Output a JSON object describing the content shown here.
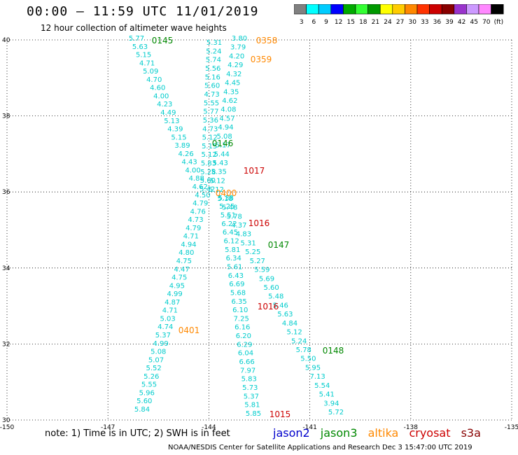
{
  "title": "00:00 – 11:59 UTC 11/01/2019",
  "subtitle": "12 hour collection of altimeter wave heights",
  "note": "note: 1) Time is in UTC; 2) SWH is in feet",
  "credit": "NOAA/NESDIS Center for Satellite Applications and Research   Dec  3 15:47:00 UTC 2019",
  "satellites": [
    {
      "name": "jason2",
      "color": "#0000cc"
    },
    {
      "name": "jason3",
      "color": "#008800"
    },
    {
      "name": "altika",
      "color": "#ff8800"
    },
    {
      "name": "cryosat",
      "color": "#cc0000"
    },
    {
      "name": "s3a",
      "color": "#880000"
    }
  ],
  "colorbar": {
    "colors": [
      "#808080",
      "#00ffff",
      "#00ccff",
      "#0000ff",
      "#00aa00",
      "#33ff33",
      "#009900",
      "#ffff00",
      "#ffcc00",
      "#ff8800",
      "#ff3300",
      "#cc0000",
      "#880000",
      "#9933cc",
      "#cc99ff",
      "#ff88ff",
      "#000000"
    ],
    "labels": [
      "3",
      "6",
      "9",
      "12",
      "15",
      "18",
      "21",
      "24",
      "27",
      "30",
      "33",
      "36",
      "39",
      "42",
      "45",
      "70",
      "(ft)"
    ]
  },
  "map": {
    "lon_range": [
      -150,
      -135
    ],
    "lat_range": [
      30,
      40
    ],
    "lon_ticks": [
      "-150",
      "-147",
      "-144",
      "-141",
      "-138",
      "-135"
    ],
    "lat_ticks": [
      "40",
      "38",
      "36",
      "34",
      "32",
      "30"
    ],
    "grid": "dotted"
  },
  "tracks": [
    {
      "values": [
        "5.77",
        "5.63",
        "5.15",
        "4.71",
        "5.09",
        "4.70",
        "4.60",
        "4.00",
        "4.23",
        "4.49",
        "5.13",
        "4.39",
        "5.15",
        "3.89",
        "4.26",
        "4.43",
        "4.00",
        "4.88",
        "4.62",
        "4.50",
        "4.79",
        "4.76",
        "4.73",
        "4.79",
        "4.71",
        "4.94",
        "4.80",
        "4.75",
        "4.47",
        "4.75",
        "4.95",
        "4.99",
        "4.87",
        "4.71",
        "5.03",
        "4.74",
        "5.37",
        "4.99",
        "5.08",
        "5.07",
        "5.52",
        "5.26",
        "5.55",
        "5.96",
        "5.60",
        "5.84"
      ]
    },
    {
      "values": [
        "5.31",
        "5.24",
        "5.74",
        "5.56",
        "5.16",
        "5.60",
        "4.73",
        "5.55",
        "5.77",
        "5.36",
        "4.73",
        "5.12",
        "5.15",
        "5.12",
        "5.83",
        "5.28",
        "5.60",
        "5.42",
        "5.38",
        "5.25",
        "5.51",
        "6.22",
        "6.45",
        "6.12",
        "5.81",
        "6.34",
        "5.61",
        "6.43",
        "6.69",
        "5.68",
        "6.35",
        "6.10",
        "7.25",
        "6.16",
        "6.20",
        "6.29",
        "6.04",
        "6.66",
        "7.97",
        "5.83",
        "5.73",
        "5.37",
        "5.81",
        "5.85"
      ]
    },
    {
      "values": [
        "3.80",
        "3.79",
        "4.20",
        "4.29",
        "4.32",
        "4.45",
        "4.35",
        "4.62",
        "4.08",
        "4.57",
        "4.94",
        "5.08",
        "5.17",
        "5.44",
        "5.43",
        "5.35",
        "5.12",
        "5.12",
        "5.18",
        "5.48",
        "5.78",
        "4.37",
        "4.83",
        "5.31",
        "5.25",
        "5.27",
        "5.59",
        "5.69",
        "5.60",
        "5.48",
        "5.46",
        "5.63",
        "4.84",
        "5.12",
        "5.24",
        "5.78",
        "5.50",
        "5.95",
        "7.13",
        "5.54",
        "5.41",
        "3.94",
        "5.72"
      ]
    }
  ],
  "passes": [
    {
      "time": "0145",
      "sat": "jason3"
    },
    {
      "time": "0358",
      "sat": "altika"
    },
    {
      "time": "0359",
      "sat": "altika"
    },
    {
      "time": "0146",
      "sat": "jason3"
    },
    {
      "time": "1017",
      "sat": "cryosat"
    },
    {
      "time": "0400",
      "sat": "altika"
    },
    {
      "time": "1016",
      "sat": "cryosat"
    },
    {
      "time": "0147",
      "sat": "jason3"
    },
    {
      "time": "1016",
      "sat": "cryosat"
    },
    {
      "time": "0401",
      "sat": "altika"
    },
    {
      "time": "0148",
      "sat": "jason3"
    },
    {
      "time": "1015",
      "sat": "cryosat"
    }
  ]
}
